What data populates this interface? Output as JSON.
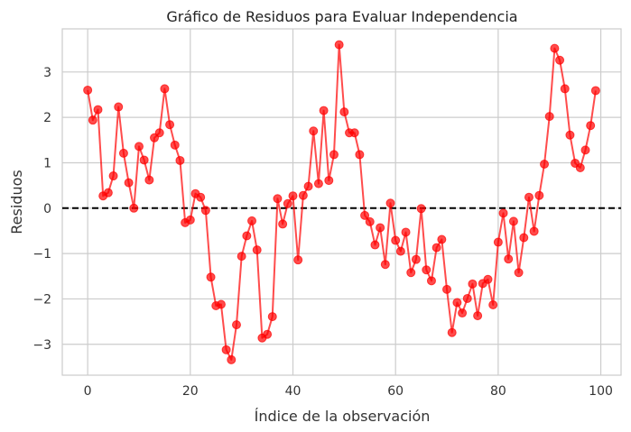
{
  "chart_data": {
    "type": "line",
    "title": "Gráfico de Residuos para Evaluar Independencia",
    "xlabel": "Índice de la observación",
    "ylabel": "Residuos",
    "xlim": [
      -4.95,
      103.95
    ],
    "ylim": [
      -3.68,
      3.95
    ],
    "xticks": [
      0,
      20,
      40,
      60,
      80,
      100
    ],
    "xtick_labels": [
      "0",
      "20",
      "40",
      "60",
      "80",
      "100"
    ],
    "yticks": [
      -3,
      -2,
      -1,
      0,
      1,
      2,
      3
    ],
    "ytick_labels": [
      "−3",
      "−2",
      "−1",
      "0",
      "1",
      "2",
      "3"
    ],
    "grid": true,
    "reference_line": {
      "y": 0,
      "style": "dashed",
      "color": "#000000"
    },
    "series": [
      {
        "marker": "circle",
        "color": "#ff0000",
        "x": [
          0,
          1,
          2,
          3,
          4,
          5,
          6,
          7,
          8,
          9,
          10,
          11,
          12,
          13,
          14,
          15,
          16,
          17,
          18,
          19,
          20,
          21,
          22,
          23,
          24,
          25,
          26,
          27,
          28,
          29,
          30,
          31,
          32,
          33,
          34,
          35,
          36,
          37,
          38,
          39,
          40,
          41,
          42,
          43,
          44,
          45,
          46,
          47,
          48,
          49,
          50,
          51,
          52,
          53,
          54,
          55,
          56,
          57,
          58,
          59,
          60,
          61,
          62,
          63,
          64,
          65,
          66,
          67,
          68,
          69,
          70,
          71,
          72,
          73,
          74,
          75,
          76,
          77,
          78,
          79,
          80,
          81,
          82,
          83,
          84,
          85,
          86,
          87,
          88,
          89,
          90,
          91,
          92,
          93,
          94,
          95,
          96,
          97,
          98,
          99
        ],
        "values": [
          2.6,
          1.94,
          2.17,
          0.27,
          0.34,
          0.71,
          2.23,
          1.21,
          0.56,
          0.0,
          1.36,
          1.06,
          0.62,
          1.55,
          1.66,
          2.63,
          1.84,
          1.39,
          1.05,
          -0.32,
          -0.26,
          0.32,
          0.24,
          -0.05,
          -1.52,
          -2.15,
          -2.12,
          -3.12,
          -3.34,
          -2.57,
          -1.06,
          -0.61,
          -0.28,
          -0.92,
          -2.86,
          -2.78,
          -2.39,
          0.21,
          -0.35,
          0.1,
          0.27,
          -1.14,
          0.28,
          0.48,
          1.7,
          0.54,
          2.15,
          0.61,
          1.18,
          3.6,
          2.12,
          1.66,
          1.66,
          1.18,
          -0.16,
          -0.3,
          -0.81,
          -0.43,
          -1.24,
          0.11,
          -0.71,
          -0.95,
          -0.53,
          -1.42,
          -1.13,
          -0.01,
          -1.36,
          -1.6,
          -0.87,
          -0.69,
          -1.79,
          -2.74,
          -2.08,
          -2.31,
          -1.99,
          -1.67,
          -2.37,
          -1.66,
          -1.57,
          -2.13,
          -0.75,
          -0.11,
          -1.12,
          -0.29,
          -1.42,
          -0.65,
          0.24,
          -0.51,
          0.28,
          0.97,
          2.02,
          3.52,
          3.26,
          2.63,
          1.61,
          0.99,
          0.89,
          1.28,
          1.82,
          2.59
        ]
      }
    ]
  }
}
